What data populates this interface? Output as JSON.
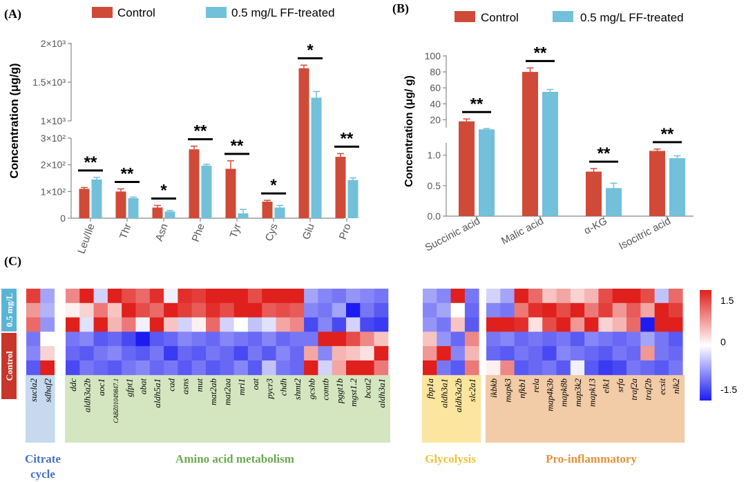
{
  "panels": [
    {
      "label": "(A)"
    },
    {
      "label": "(B)"
    },
    {
      "label": "(C)"
    }
  ],
  "colors": {
    "control": "#d04a38",
    "treated": "#72c0d9",
    "axis": "#888888",
    "text": "#555555"
  },
  "chart_data": [
    {
      "type": "bar",
      "title": "",
      "ylabel": "Concentration (μg/g)",
      "y_break": [
        300,
        1000
      ],
      "ylim": [
        0,
        2000
      ],
      "y_ticks": [
        {
          "value": 0,
          "label": "0"
        },
        {
          "value": 100,
          "label": "1×10²"
        },
        {
          "value": 200,
          "label": "2×10²"
        },
        {
          "value": 300,
          "label": "3×10²"
        },
        {
          "value": 1000,
          "label": "1×10³"
        },
        {
          "value": 1500,
          "label": "1.5×10³"
        },
        {
          "value": 2000,
          "label": "2×10³"
        }
      ],
      "categories": [
        "Leu/Ile",
        "Thr",
        "Asn",
        "Phe",
        "Tyr",
        "Cys",
        "Glu",
        "Pro"
      ],
      "series": [
        {
          "name": "Control",
          "values": [
            110,
            100,
            40,
            258,
            185,
            62,
            1680,
            230
          ],
          "errors": [
            5,
            10,
            8,
            12,
            30,
            5,
            40,
            12
          ]
        },
        {
          "name": "0.5 mg/L FF-treated",
          "values": [
            145,
            75,
            25,
            197,
            18,
            40,
            1300,
            143
          ],
          "errors": [
            8,
            4,
            4,
            5,
            15,
            8,
            80,
            8
          ]
        }
      ],
      "significance": [
        "**",
        "**",
        "*",
        "**",
        "**",
        "*",
        "*",
        "**"
      ]
    },
    {
      "type": "bar",
      "title": "",
      "ylabel": "Concentration (μg/ g)",
      "y_break": [
        1.2,
        10
      ],
      "ylim": [
        0,
        100
      ],
      "y_ticks": [
        {
          "value": 0,
          "label": "0.0"
        },
        {
          "value": 0.5,
          "label": "0.5"
        },
        {
          "value": 1.0,
          "label": "1.0"
        },
        {
          "value": 20,
          "label": "20"
        },
        {
          "value": 40,
          "label": "40"
        },
        {
          "value": 60,
          "label": "60"
        },
        {
          "value": 80,
          "label": "80"
        },
        {
          "value": 100,
          "label": "100"
        }
      ],
      "categories": [
        "Succinic acid",
        "Malic acid",
        "α-KG",
        "Isocitric acid"
      ],
      "series": [
        {
          "name": "Control",
          "values": [
            18,
            80,
            0.73,
            1.07
          ],
          "errors": [
            3,
            5,
            0.05,
            0.03
          ]
        },
        {
          "name": "0.5 mg/L FF-treated",
          "values": [
            8,
            55,
            0.46,
            0.95
          ],
          "errors": [
            1,
            3,
            0.08,
            0.04
          ]
        }
      ],
      "significance": [
        "**",
        "**",
        "**",
        "**"
      ]
    }
  ],
  "heatmap": {
    "row_groups": [
      "0.5 mg/L",
      "Control"
    ],
    "colorbar_ticks": [
      "1.5",
      "0",
      "-1.5"
    ],
    "range": [
      -1.5,
      1.5
    ],
    "groups": [
      {
        "name": "Citrate cycle",
        "name_lines": [
          "Citrate",
          "cycle"
        ],
        "color": "#4472c4",
        "bg": "#c6d9ef",
        "genes": [
          "sucla2",
          "sdhaf2"
        ],
        "values": [
          [
            1.3,
            -0.6
          ],
          [
            0.7,
            -0.5
          ],
          [
            1.0,
            -0.7
          ],
          [
            -0.9,
            0.0
          ],
          [
            -0.8,
            0.3
          ],
          [
            -1.1,
            1.6
          ]
        ]
      },
      {
        "name": "Amino acid metabolism",
        "name_lines": [
          "Amino acid metabolism"
        ],
        "color": "#6aa84f",
        "bg": "#d4e6bf",
        "genes": [
          "ddc",
          "aldh3a2b",
          "aoc1",
          "CABZ01049847.1",
          "gfpt1",
          "abat",
          "aldh5a1",
          "cad",
          "asns",
          "mut",
          "mat2ab",
          "mat2aa",
          "mri1",
          "oat",
          "pycr3",
          "chdh",
          "shmt2",
          "gcshb",
          "comtb",
          "pggt1b",
          "mgst1.2",
          "bcat2",
          "aldh3a1"
        ],
        "values": [
          [
            0.8,
            1.6,
            -0.3,
            1.6,
            1.2,
            1.0,
            1.4,
            -0.1,
            1.4,
            1.3,
            1.6,
            1.6,
            1.6,
            1.2,
            1.6,
            1.5,
            1.6,
            -0.6,
            -0.8,
            -0.9,
            -0.7,
            -0.8,
            -0.9
          ],
          [
            0.1,
            0.3,
            0.9,
            0.4,
            1.6,
            1.2,
            1.0,
            1.6,
            1.3,
            1.1,
            1.4,
            1.2,
            1.5,
            1.5,
            1.1,
            1.2,
            1.1,
            -0.8,
            -0.9,
            -0.6,
            -1.5,
            -0.9,
            -1.1
          ],
          [
            1.6,
            -0.2,
            1.6,
            0.5,
            0.9,
            -0.1,
            1.5,
            0.4,
            -0.3,
            0.1,
            1.0,
            -0.3,
            0.0,
            -0.4,
            -0.2,
            0.6,
            0.8,
            -1.2,
            -0.8,
            -1.2,
            -0.3,
            -1.2,
            -1.3
          ],
          [
            -0.9,
            -0.8,
            -1.1,
            -1.0,
            -1.2,
            -1.6,
            -1.1,
            -1.0,
            -0.8,
            -0.9,
            -1.0,
            -0.8,
            -0.9,
            -1.0,
            -0.8,
            -1.0,
            -0.9,
            -0.9,
            1.6,
            1.5,
            1.2,
            0.8,
            0.4
          ],
          [
            -1.0,
            -1.1,
            -0.9,
            -0.8,
            -1.0,
            -1.1,
            -0.9,
            -1.3,
            -1.0,
            -1.1,
            -0.9,
            -1.0,
            -1.2,
            -0.9,
            -1.1,
            -0.8,
            -1.0,
            0.6,
            -0.8,
            0.5,
            0.4,
            0.2,
            1.6
          ],
          [
            -1.2,
            -0.9,
            -1.0,
            -1.1,
            -0.9,
            -0.8,
            -1.0,
            -0.9,
            -1.1,
            -0.9,
            -1.1,
            -1.0,
            -0.8,
            -1.1,
            -0.4,
            -0.9,
            -1.0,
            1.6,
            -0.3,
            0.6,
            1.6,
            1.5,
            0.9
          ]
        ]
      },
      {
        "name": "Glycolysis",
        "name_lines": [
          "Glycolysis"
        ],
        "color": "#f1c232",
        "bg": "#fbe59f",
        "genes": [
          "fbp1a",
          "aldh3a1",
          "aldh3a2b",
          "slc2a1"
        ],
        "values": [
          [
            -0.6,
            -0.8,
            1.6,
            -0.9
          ],
          [
            -0.8,
            -0.6,
            0.0,
            -1.0
          ],
          [
            -0.7,
            -0.9,
            0.4,
            -1.1
          ],
          [
            0.4,
            -0.7,
            -1.0,
            0.8
          ],
          [
            0.7,
            1.6,
            -0.8,
            0.5
          ],
          [
            1.6,
            -0.9,
            -1.1,
            0.9
          ]
        ]
      },
      {
        "name": "Pro-inflammatory",
        "name_lines": [
          "Pro-inflammatory"
        ],
        "color": "#e69138",
        "bg": "#f2cba7",
        "genes": [
          "ikbkb",
          "mapk3",
          "nfkb1",
          "rela",
          "map4k3b",
          "mapk8b",
          "map3k2",
          "mapk13",
          "elk1",
          "srfa",
          "traf2a",
          "traf2b",
          "ecsit",
          "nlk2"
        ],
        "values": [
          [
            -0.3,
            -0.6,
            1.6,
            1.0,
            0.4,
            0.6,
            0.3,
            0.5,
            1.2,
            1.5,
            1.6,
            1.2,
            -0.4,
            1.0
          ],
          [
            -0.8,
            -0.9,
            0.9,
            1.4,
            1.5,
            1.2,
            1.6,
            0.9,
            1.3,
            0.7,
            1.1,
            0.6,
            1.6,
            1.3
          ],
          [
            1.6,
            1.6,
            1.4,
            0.2,
            1.2,
            1.6,
            0.7,
            1.5,
            0.3,
            0.5,
            1.0,
            -1.6,
            1.6,
            1.5
          ],
          [
            -0.9,
            -0.8,
            -1.0,
            -0.9,
            -1.0,
            -0.9,
            -1.1,
            -0.8,
            -0.9,
            -1.0,
            -0.9,
            -0.6,
            -0.9,
            -1.1
          ],
          [
            -1.0,
            -1.1,
            -0.9,
            -1.0,
            -1.2,
            -0.8,
            -0.9,
            -1.0,
            -1.1,
            -0.9,
            -1.0,
            0.7,
            -0.9,
            -1.0
          ],
          [
            0.1,
            0.8,
            -1.1,
            -1.0,
            -0.9,
            -1.1,
            -0.1,
            -1.1,
            -1.3,
            -1.2,
            -0.9,
            -1.0,
            -1.1,
            -0.9
          ]
        ]
      }
    ]
  }
}
